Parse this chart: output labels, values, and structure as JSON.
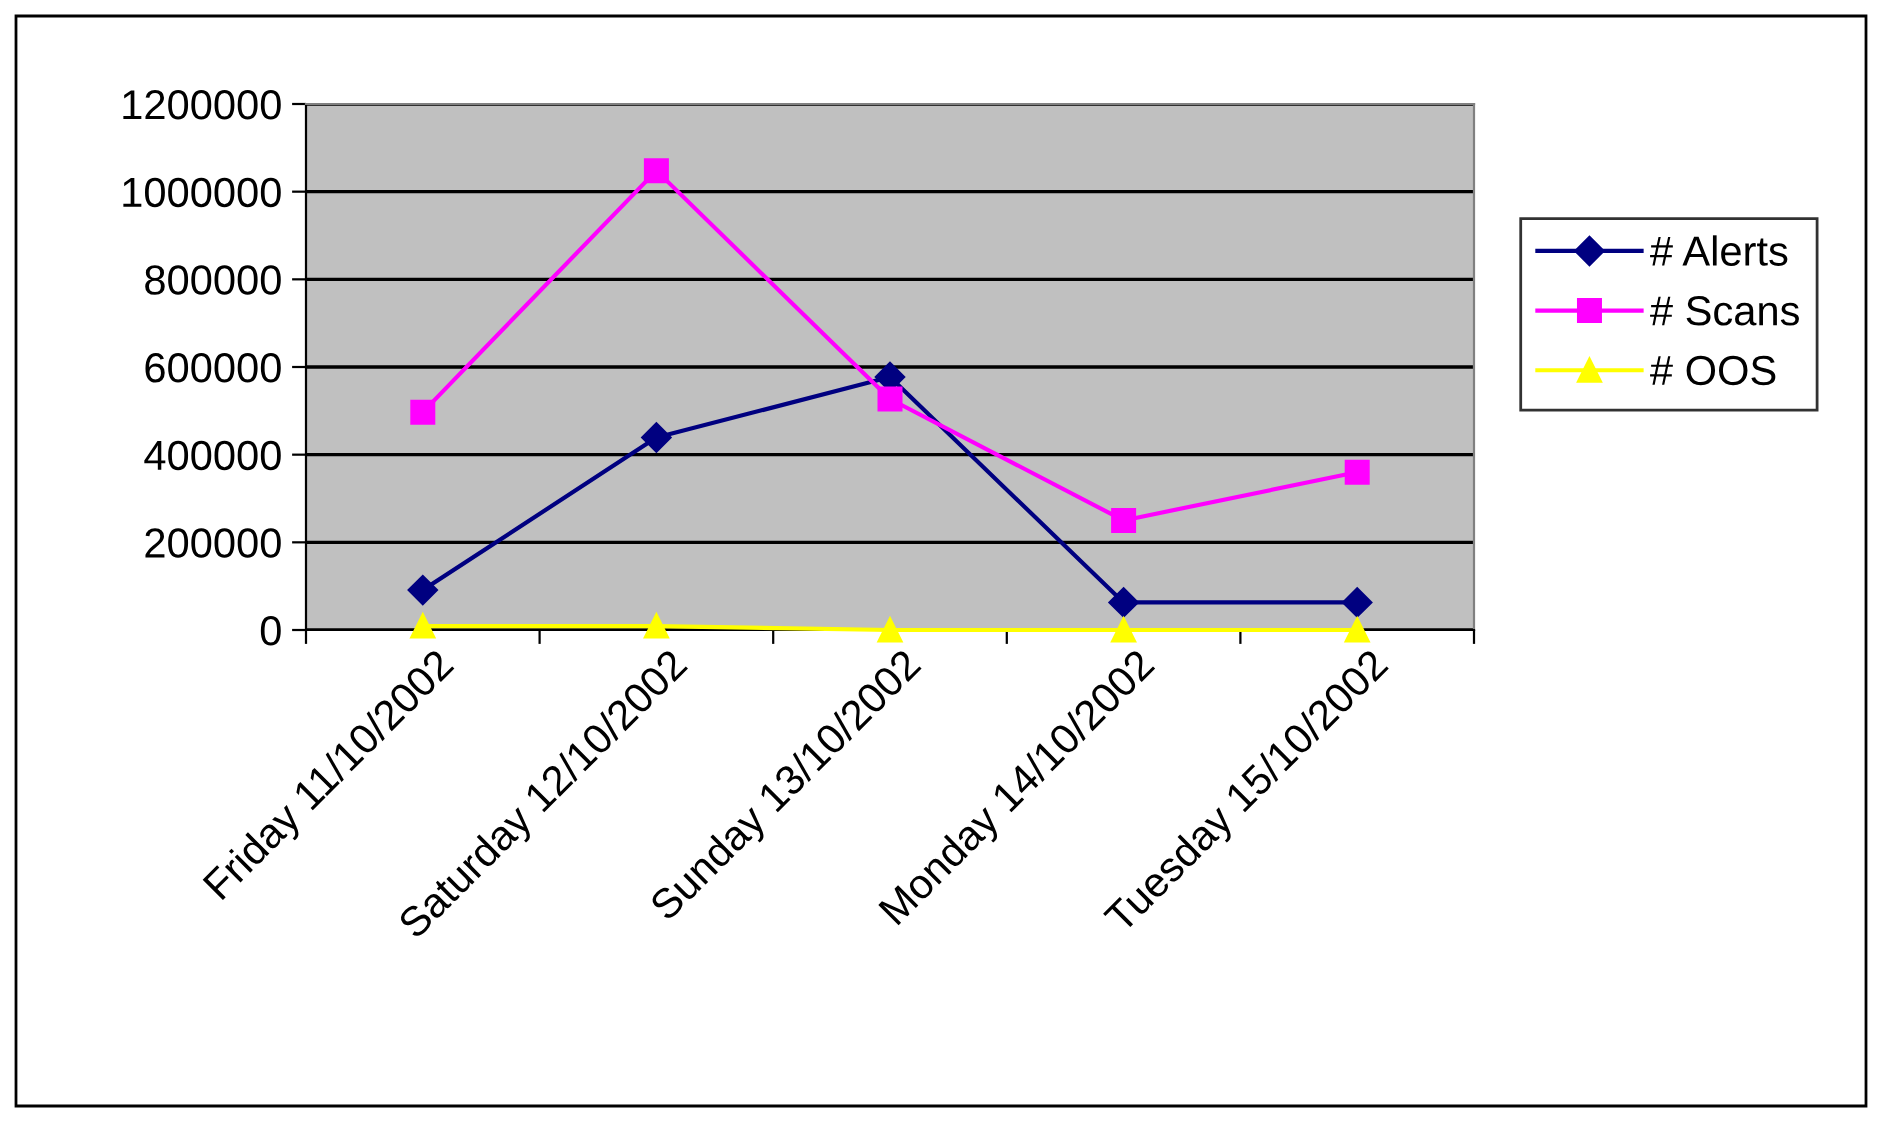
{
  "chart_data": {
    "type": "line",
    "categories": [
      "Friday 11/10/2002",
      "Saturday 12/10/2002",
      "Sunday 13/10/2002",
      "Monday 14/10/2002",
      "Tuesday 15/10/2002"
    ],
    "series": [
      {
        "name": "# Alerts",
        "color": "#000080",
        "marker": "diamond",
        "values": [
          91000,
          439000,
          577000,
          63000,
          63000
        ]
      },
      {
        "name": "# Scans",
        "color": "#ff00ff",
        "marker": "square",
        "values": [
          497000,
          1048000,
          527000,
          250000,
          360000
        ]
      },
      {
        "name": "# OOS",
        "color": "#ffff00",
        "marker": "triangle",
        "values": [
          9000,
          9000,
          0,
          0,
          0
        ]
      }
    ],
    "ylim": [
      0,
      1200000
    ],
    "yticks": [
      0,
      200000,
      400000,
      600000,
      800000,
      1000000,
      1200000
    ],
    "grid": "y",
    "legend": "right"
  }
}
